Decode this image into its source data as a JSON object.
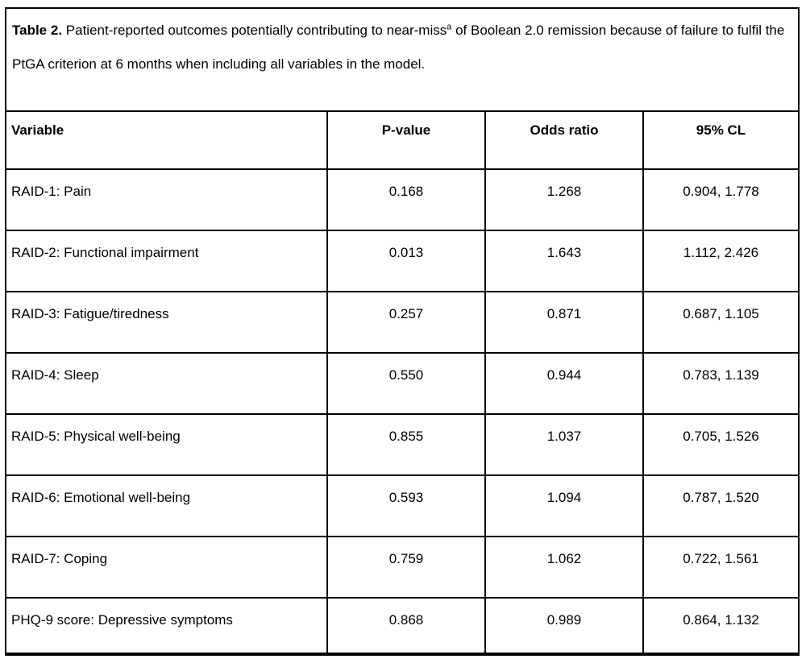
{
  "colors": {
    "border": "#000000",
    "background": "#ffffff",
    "text": "#000000"
  },
  "caption": {
    "label": "Table 2.",
    "text_before_sup": " Patient-reported outcomes potentially contributing to near-miss",
    "superscript": "a",
    "text_after_sup": " of Boolean 2.0 remission because of failure to fulfil the PtGA criterion at 6 months when including all variables in the model."
  },
  "table": {
    "columns": [
      "Variable",
      "P-value",
      "Odds ratio",
      "95% CL"
    ],
    "rows": [
      {
        "variable": "RAID-1: Pain",
        "p_value": "0.168",
        "odds_ratio": "1.268",
        "ci_95": "0.904, 1.778"
      },
      {
        "variable": "RAID-2: Functional impairment",
        "p_value": "0.013",
        "odds_ratio": "1.643",
        "ci_95": "1.112, 2.426"
      },
      {
        "variable": "RAID-3: Fatigue/tiredness",
        "p_value": "0.257",
        "odds_ratio": "0.871",
        "ci_95": "0.687, 1.105"
      },
      {
        "variable": "RAID-4: Sleep",
        "p_value": "0.550",
        "odds_ratio": "0.944",
        "ci_95": "0.783, 1.139"
      },
      {
        "variable": "RAID-5: Physical well-being",
        "p_value": "0.855",
        "odds_ratio": "1.037",
        "ci_95": "0.705, 1.526"
      },
      {
        "variable": "RAID-6: Emotional well-being",
        "p_value": "0.593",
        "odds_ratio": "1.094",
        "ci_95": "0.787, 1.520"
      },
      {
        "variable": "RAID-7: Coping",
        "p_value": "0.759",
        "odds_ratio": "1.062",
        "ci_95": "0.722, 1.561"
      },
      {
        "variable": "PHQ-9 score: Depressive symptoms",
        "p_value": "0.868",
        "odds_ratio": "0.989",
        "ci_95": "0.864, 1.132"
      }
    ]
  }
}
